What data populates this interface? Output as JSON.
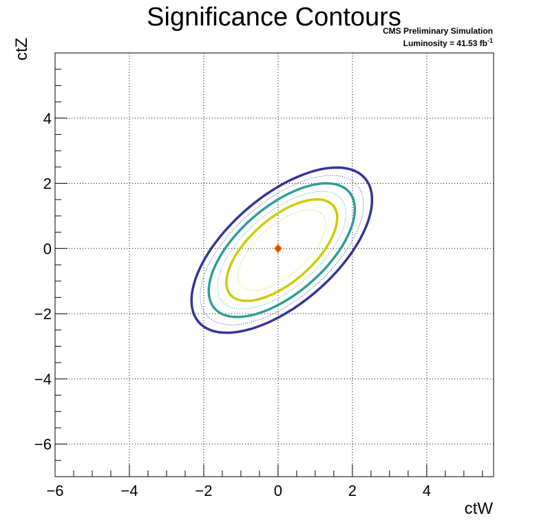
{
  "chart_data": {
    "type": "contour",
    "title": "Significance Contours",
    "annotation": {
      "line1": "CMS Preliminary Simulation",
      "line2_prefix": "Luminosity = 41.53 fb",
      "line2_sup": "-1"
    },
    "xlabel": "ctW",
    "ylabel": "ctZ",
    "xlim": [
      -6,
      5.8
    ],
    "ylim": [
      -7,
      6
    ],
    "xticks": [
      -6,
      -4,
      -2,
      0,
      2,
      4
    ],
    "yticks": [
      -6,
      -4,
      -2,
      0,
      2,
      4
    ],
    "grid": true,
    "best_fit_point": {
      "x": 0,
      "y": 0,
      "color": "#ff3300"
    },
    "contours": [
      {
        "level": "outer",
        "style": "solid",
        "color": "#333399",
        "center": [
          0.1,
          -0.05
        ],
        "semi_major": 3.15,
        "semi_minor": 1.55,
        "angle_deg": 47
      },
      {
        "level": "outer",
        "style": "dotted",
        "color": "#333399",
        "center": [
          0.1,
          -0.05
        ],
        "semi_major": 2.85,
        "semi_minor": 1.4,
        "angle_deg": 47
      },
      {
        "level": "middle",
        "style": "solid",
        "color": "#2d9e96",
        "center": [
          0.1,
          -0.05
        ],
        "semi_major": 2.55,
        "semi_minor": 1.25,
        "angle_deg": 47
      },
      {
        "level": "middle",
        "style": "dotted",
        "color": "#2d9e96",
        "center": [
          0.1,
          -0.05
        ],
        "semi_major": 2.25,
        "semi_minor": 1.08,
        "angle_deg": 47
      },
      {
        "level": "inner",
        "style": "solid",
        "color": "#cccc00",
        "center": [
          0.1,
          -0.05
        ],
        "semi_major": 1.95,
        "semi_minor": 0.92,
        "angle_deg": 47
      },
      {
        "level": "inner",
        "style": "dotted",
        "color": "#cccc00",
        "center": [
          0.1,
          -0.05
        ],
        "semi_major": 1.55,
        "semi_minor": 0.72,
        "angle_deg": 47
      }
    ]
  }
}
